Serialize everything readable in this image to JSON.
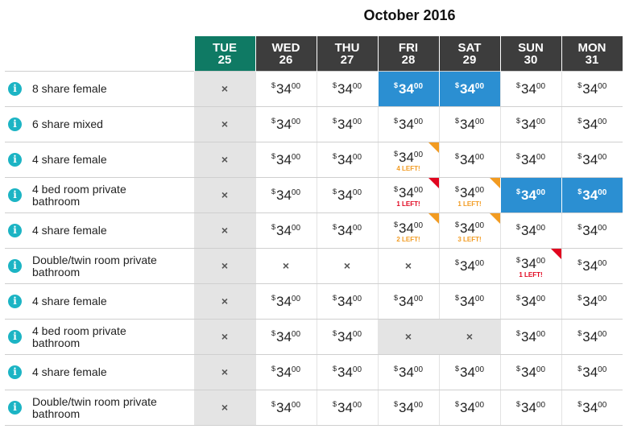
{
  "month_label": "October 2016",
  "currency": "$",
  "na_symbol": "×",
  "colors": {
    "today_header": "#0f7a64",
    "header": "#3d3d3d",
    "selected": "#2b8fd2",
    "low_orange": "#f29b21",
    "low_red": "#e1051f",
    "info": "#1cb4c4"
  },
  "days": [
    {
      "name": "TUE",
      "num": "25",
      "today": true
    },
    {
      "name": "WED",
      "num": "26"
    },
    {
      "name": "THU",
      "num": "27"
    },
    {
      "name": "FRI",
      "num": "28"
    },
    {
      "name": "SAT",
      "num": "29"
    },
    {
      "name": "SUN",
      "num": "30"
    },
    {
      "name": "MON",
      "num": "31"
    }
  ],
  "rooms": [
    {
      "name": "8 share female",
      "cells": [
        {
          "na": true
        },
        {
          "price": "34",
          "cents": "00"
        },
        {
          "price": "34",
          "cents": "00"
        },
        {
          "price": "34",
          "cents": "00",
          "selected": true
        },
        {
          "price": "34",
          "cents": "00",
          "selected": true
        },
        {
          "price": "34",
          "cents": "00"
        },
        {
          "price": "34",
          "cents": "00"
        }
      ]
    },
    {
      "name": "6 share mixed",
      "cells": [
        {
          "na": true
        },
        {
          "price": "34",
          "cents": "00"
        },
        {
          "price": "34",
          "cents": "00"
        },
        {
          "price": "34",
          "cents": "00"
        },
        {
          "price": "34",
          "cents": "00"
        },
        {
          "price": "34",
          "cents": "00"
        },
        {
          "price": "34",
          "cents": "00"
        }
      ]
    },
    {
      "name": "4 share female",
      "cells": [
        {
          "na": true
        },
        {
          "price": "34",
          "cents": "00"
        },
        {
          "price": "34",
          "cents": "00"
        },
        {
          "price": "34",
          "cents": "00",
          "left": "4 LEFT!",
          "level": "orange"
        },
        {
          "price": "34",
          "cents": "00"
        },
        {
          "price": "34",
          "cents": "00"
        },
        {
          "price": "34",
          "cents": "00"
        }
      ]
    },
    {
      "name": "4 bed room private bathroom",
      "cells": [
        {
          "na": true
        },
        {
          "price": "34",
          "cents": "00"
        },
        {
          "price": "34",
          "cents": "00"
        },
        {
          "price": "34",
          "cents": "00",
          "left": "1 LEFT!",
          "level": "red"
        },
        {
          "price": "34",
          "cents": "00",
          "left": "1 LEFT!",
          "level": "orange"
        },
        {
          "price": "34",
          "cents": "00",
          "selected": true
        },
        {
          "price": "34",
          "cents": "00",
          "selected": true
        }
      ]
    },
    {
      "name": "4 share female",
      "cells": [
        {
          "na": true
        },
        {
          "price": "34",
          "cents": "00"
        },
        {
          "price": "34",
          "cents": "00"
        },
        {
          "price": "34",
          "cents": "00",
          "left": "2 LEFT!",
          "level": "orange"
        },
        {
          "price": "34",
          "cents": "00",
          "left": "3 LEFT!",
          "level": "orange"
        },
        {
          "price": "34",
          "cents": "00"
        },
        {
          "price": "34",
          "cents": "00"
        }
      ]
    },
    {
      "name": "Double/twin room private bathroom",
      "cells": [
        {
          "na": true
        },
        {
          "na": true
        },
        {
          "na": true
        },
        {
          "na": true
        },
        {
          "price": "34",
          "cents": "00"
        },
        {
          "price": "34",
          "cents": "00",
          "left": "1 LEFT!",
          "level": "red"
        },
        {
          "price": "34",
          "cents": "00"
        }
      ]
    },
    {
      "name": "4 share female",
      "cells": [
        {
          "na": true
        },
        {
          "price": "34",
          "cents": "00"
        },
        {
          "price": "34",
          "cents": "00"
        },
        {
          "price": "34",
          "cents": "00"
        },
        {
          "price": "34",
          "cents": "00"
        },
        {
          "price": "34",
          "cents": "00"
        },
        {
          "price": "34",
          "cents": "00"
        }
      ]
    },
    {
      "name": "4 bed room private bathroom",
      "cells": [
        {
          "na": true
        },
        {
          "price": "34",
          "cents": "00"
        },
        {
          "price": "34",
          "cents": "00"
        },
        {
          "na": true,
          "shaded": true
        },
        {
          "na": true,
          "shaded": true
        },
        {
          "price": "34",
          "cents": "00"
        },
        {
          "price": "34",
          "cents": "00"
        }
      ]
    },
    {
      "name": "4 share female",
      "cells": [
        {
          "na": true
        },
        {
          "price": "34",
          "cents": "00"
        },
        {
          "price": "34",
          "cents": "00"
        },
        {
          "price": "34",
          "cents": "00"
        },
        {
          "price": "34",
          "cents": "00"
        },
        {
          "price": "34",
          "cents": "00"
        },
        {
          "price": "34",
          "cents": "00"
        }
      ]
    },
    {
      "name": "Double/twin room private bathroom",
      "cells": [
        {
          "na": true
        },
        {
          "price": "34",
          "cents": "00"
        },
        {
          "price": "34",
          "cents": "00"
        },
        {
          "price": "34",
          "cents": "00"
        },
        {
          "price": "34",
          "cents": "00"
        },
        {
          "price": "34",
          "cents": "00"
        },
        {
          "price": "34",
          "cents": "00"
        }
      ]
    }
  ]
}
